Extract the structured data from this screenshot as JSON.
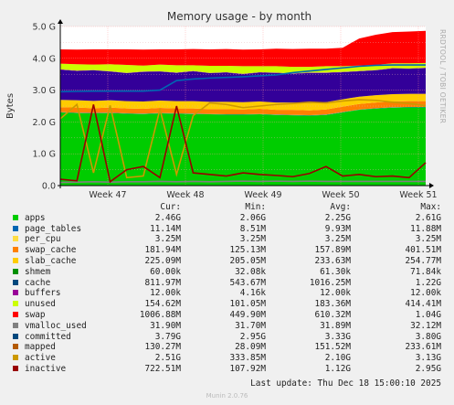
{
  "chart_data": {
    "type": "area",
    "title": "Memory usage - by month",
    "ylabel": "Bytes",
    "side_label": "RRDTOOL / TOBI OETIKER",
    "ylim": [
      0,
      5
    ],
    "y_ticks": [
      "0.0",
      "1.0 G",
      "2.0 G",
      "3.0 G",
      "4.0 G",
      "5.0 G"
    ],
    "x_ticks": [
      "Week 47",
      "Week 48",
      "Week 49",
      "Week 50",
      "Week 51"
    ],
    "grid": true,
    "x": [
      "W46.7",
      "W47.0",
      "W47.2",
      "W47.4",
      "W47.6",
      "W47.8",
      "W48.0",
      "W48.2",
      "W48.4",
      "W48.6",
      "W48.8",
      "W49.0",
      "W49.2",
      "W49.4",
      "W49.6",
      "W49.8",
      "W50.0",
      "W50.2",
      "W50.4",
      "W50.6",
      "W50.8",
      "W51.0",
      "W51.2"
    ],
    "stacked_series": [
      {
        "name": "apps",
        "color": "#00cc00",
        "values": [
          2.3,
          2.28,
          2.27,
          2.28,
          2.26,
          2.25,
          2.27,
          2.26,
          2.25,
          2.24,
          2.23,
          2.23,
          2.24,
          2.22,
          2.21,
          2.2,
          2.22,
          2.3,
          2.38,
          2.42,
          2.45,
          2.46,
          2.46
        ]
      },
      {
        "name": "page_tables",
        "color": "#0066b3",
        "values": [
          0.01,
          0.01,
          0.01,
          0.01,
          0.01,
          0.01,
          0.01,
          0.01,
          0.01,
          0.01,
          0.01,
          0.01,
          0.01,
          0.01,
          0.01,
          0.01,
          0.01,
          0.01,
          0.01,
          0.01,
          0.01,
          0.01,
          0.01
        ]
      },
      {
        "name": "per_cpu",
        "color": "#ffcc00",
        "values": [
          0.003,
          0.003,
          0.003,
          0.003,
          0.003,
          0.003,
          0.003,
          0.003,
          0.003,
          0.003,
          0.003,
          0.003,
          0.003,
          0.003,
          0.003,
          0.003,
          0.003,
          0.003,
          0.003,
          0.003,
          0.003,
          0.003,
          0.003
        ]
      },
      {
        "name": "swap_cache",
        "color": "#ff8000",
        "values": [
          0.15,
          0.16,
          0.15,
          0.16,
          0.15,
          0.15,
          0.16,
          0.15,
          0.16,
          0.15,
          0.16,
          0.15,
          0.16,
          0.15,
          0.16,
          0.15,
          0.16,
          0.17,
          0.17,
          0.18,
          0.18,
          0.18,
          0.18
        ]
      },
      {
        "name": "slab_cache",
        "color": "#ffcc00",
        "values": [
          0.23,
          0.23,
          0.23,
          0.23,
          0.23,
          0.23,
          0.23,
          0.23,
          0.23,
          0.23,
          0.23,
          0.23,
          0.23,
          0.23,
          0.23,
          0.23,
          0.23,
          0.23,
          0.23,
          0.23,
          0.23,
          0.23,
          0.23
        ]
      },
      {
        "name": "shmem",
        "color": "#330099",
        "values": [
          0.0,
          0.0,
          0.0,
          0.0,
          0.0,
          0.0,
          0.0,
          0.0,
          0.0,
          0.0,
          0.0,
          0.0,
          0.0,
          0.0,
          0.0,
          0.0,
          0.0,
          0.0,
          0.0,
          0.0,
          0.0,
          0.0,
          0.0
        ]
      },
      {
        "name": "cache",
        "color": "#330099",
        "values": [
          0.95,
          0.92,
          0.96,
          0.9,
          0.88,
          0.93,
          0.91,
          0.89,
          0.94,
          0.9,
          0.92,
          0.88,
          0.91,
          0.93,
          0.9,
          0.95,
          0.92,
          0.85,
          0.8,
          0.78,
          0.81,
          0.79,
          0.81
        ]
      },
      {
        "name": "buffers",
        "color": "#990099",
        "values": [
          0.01,
          0.01,
          0.01,
          0.01,
          0.01,
          0.01,
          0.01,
          0.01,
          0.01,
          0.01,
          0.01,
          0.01,
          0.01,
          0.01,
          0.01,
          0.01,
          0.01,
          0.01,
          0.01,
          0.01,
          0.01,
          0.01,
          0.01
        ]
      },
      {
        "name": "unused",
        "color": "#ccff00",
        "values": [
          0.18,
          0.2,
          0.17,
          0.22,
          0.25,
          0.19,
          0.21,
          0.23,
          0.18,
          0.22,
          0.2,
          0.24,
          0.19,
          0.2,
          0.21,
          0.18,
          0.2,
          0.18,
          0.17,
          0.16,
          0.15,
          0.16,
          0.15
        ]
      },
      {
        "name": "swap",
        "color": "#ff0000",
        "values": [
          0.45,
          0.46,
          0.48,
          0.47,
          0.49,
          0.5,
          0.48,
          0.5,
          0.51,
          0.52,
          0.53,
          0.52,
          0.53,
          0.55,
          0.56,
          0.57,
          0.55,
          0.58,
          0.85,
          0.95,
          0.98,
          1.0,
          1.01
        ]
      }
    ],
    "line_series": [
      {
        "name": "committed",
        "color": "#0066b3",
        "values": [
          2.95,
          2.96,
          2.97,
          2.97,
          2.97,
          2.97,
          3.0,
          3.3,
          3.35,
          3.38,
          3.4,
          3.42,
          3.45,
          3.48,
          3.55,
          3.6,
          3.65,
          3.7,
          3.75,
          3.78,
          3.79,
          3.79,
          3.79
        ]
      },
      {
        "name": "mapped",
        "color": "#808080",
        "values": [
          0.1,
          0.11,
          0.12,
          0.11,
          0.12,
          0.12,
          0.13,
          0.12,
          0.13,
          0.12,
          0.13,
          0.14,
          0.13,
          0.14,
          0.13,
          0.14,
          0.13,
          0.13,
          0.13,
          0.13,
          0.13,
          0.13,
          0.13
        ]
      },
      {
        "name": "active",
        "color": "#cc9900",
        "values": [
          2.1,
          2.55,
          0.4,
          2.52,
          0.25,
          0.3,
          2.4,
          0.35,
          2.2,
          2.6,
          2.55,
          2.45,
          2.5,
          2.55,
          2.58,
          2.62,
          2.6,
          2.66,
          2.7,
          2.68,
          2.62,
          2.58,
          2.51
        ]
      },
      {
        "name": "inactive",
        "color": "#990000",
        "values": [
          0.2,
          0.15,
          2.55,
          0.12,
          0.5,
          0.6,
          0.25,
          2.5,
          0.4,
          0.35,
          0.3,
          0.4,
          0.35,
          0.32,
          0.28,
          0.38,
          0.6,
          0.3,
          0.35,
          0.28,
          0.3,
          0.25,
          0.72
        ]
      }
    ]
  },
  "legend": {
    "headers": {
      "cur": "Cur:",
      "min": "Min:",
      "avg": "Avg:",
      "max": "Max:"
    },
    "rows": [
      {
        "name": "apps",
        "color": "#00cc00",
        "cur": "2.46G",
        "min": "2.06G",
        "avg": "2.25G",
        "max": "2.61G"
      },
      {
        "name": "page_tables",
        "color": "#0066b3",
        "cur": "11.14M",
        "min": "8.51M",
        "avg": "9.93M",
        "max": "11.88M"
      },
      {
        "name": "per_cpu",
        "color": "#ffdd44",
        "cur": "3.25M",
        "min": "3.25M",
        "avg": "3.25M",
        "max": "3.25M"
      },
      {
        "name": "swap_cache",
        "color": "#ff8000",
        "cur": "181.94M",
        "min": "125.13M",
        "avg": "157.89M",
        "max": "401.51M"
      },
      {
        "name": "slab_cache",
        "color": "#ffcc00",
        "cur": "225.09M",
        "min": "205.05M",
        "avg": "233.63M",
        "max": "254.77M"
      },
      {
        "name": "shmem",
        "color": "#008f00",
        "cur": "60.00k",
        "min": "32.08k",
        "avg": "61.30k",
        "max": "71.84k"
      },
      {
        "name": "cache",
        "color": "#00487d",
        "cur": "811.97M",
        "min": "543.67M",
        "avg": "1016.25M",
        "max": "1.22G"
      },
      {
        "name": "buffers",
        "color": "#990099",
        "cur": "12.00k",
        "min": "4.16k",
        "avg": "12.00k",
        "max": "12.00k"
      },
      {
        "name": "unused",
        "color": "#ccff00",
        "cur": "154.62M",
        "min": "101.05M",
        "avg": "183.36M",
        "max": "414.41M"
      },
      {
        "name": "swap",
        "color": "#ff0000",
        "cur": "1006.88M",
        "min": "449.90M",
        "avg": "610.32M",
        "max": "1.04G"
      },
      {
        "name": "vmalloc_used",
        "color": "#808080",
        "cur": "31.90M",
        "min": "31.70M",
        "avg": "31.89M",
        "max": "32.12M"
      },
      {
        "name": "committed",
        "color": "#00487d",
        "cur": "3.79G",
        "min": "2.95G",
        "avg": "3.33G",
        "max": "3.80G"
      },
      {
        "name": "mapped",
        "color": "#b35a00",
        "cur": "130.27M",
        "min": "28.09M",
        "avg": "151.52M",
        "max": "233.61M"
      },
      {
        "name": "active",
        "color": "#cc9900",
        "cur": "2.51G",
        "min": "333.85M",
        "avg": "2.10G",
        "max": "3.13G"
      },
      {
        "name": "inactive",
        "color": "#990000",
        "cur": "722.51M",
        "min": "107.92M",
        "avg": "1.12G",
        "max": "2.95G"
      }
    ]
  },
  "footer": {
    "last_update": "Last update: Thu Dec 18 15:00:10 2025",
    "generator": "Munin 2.0.76"
  }
}
